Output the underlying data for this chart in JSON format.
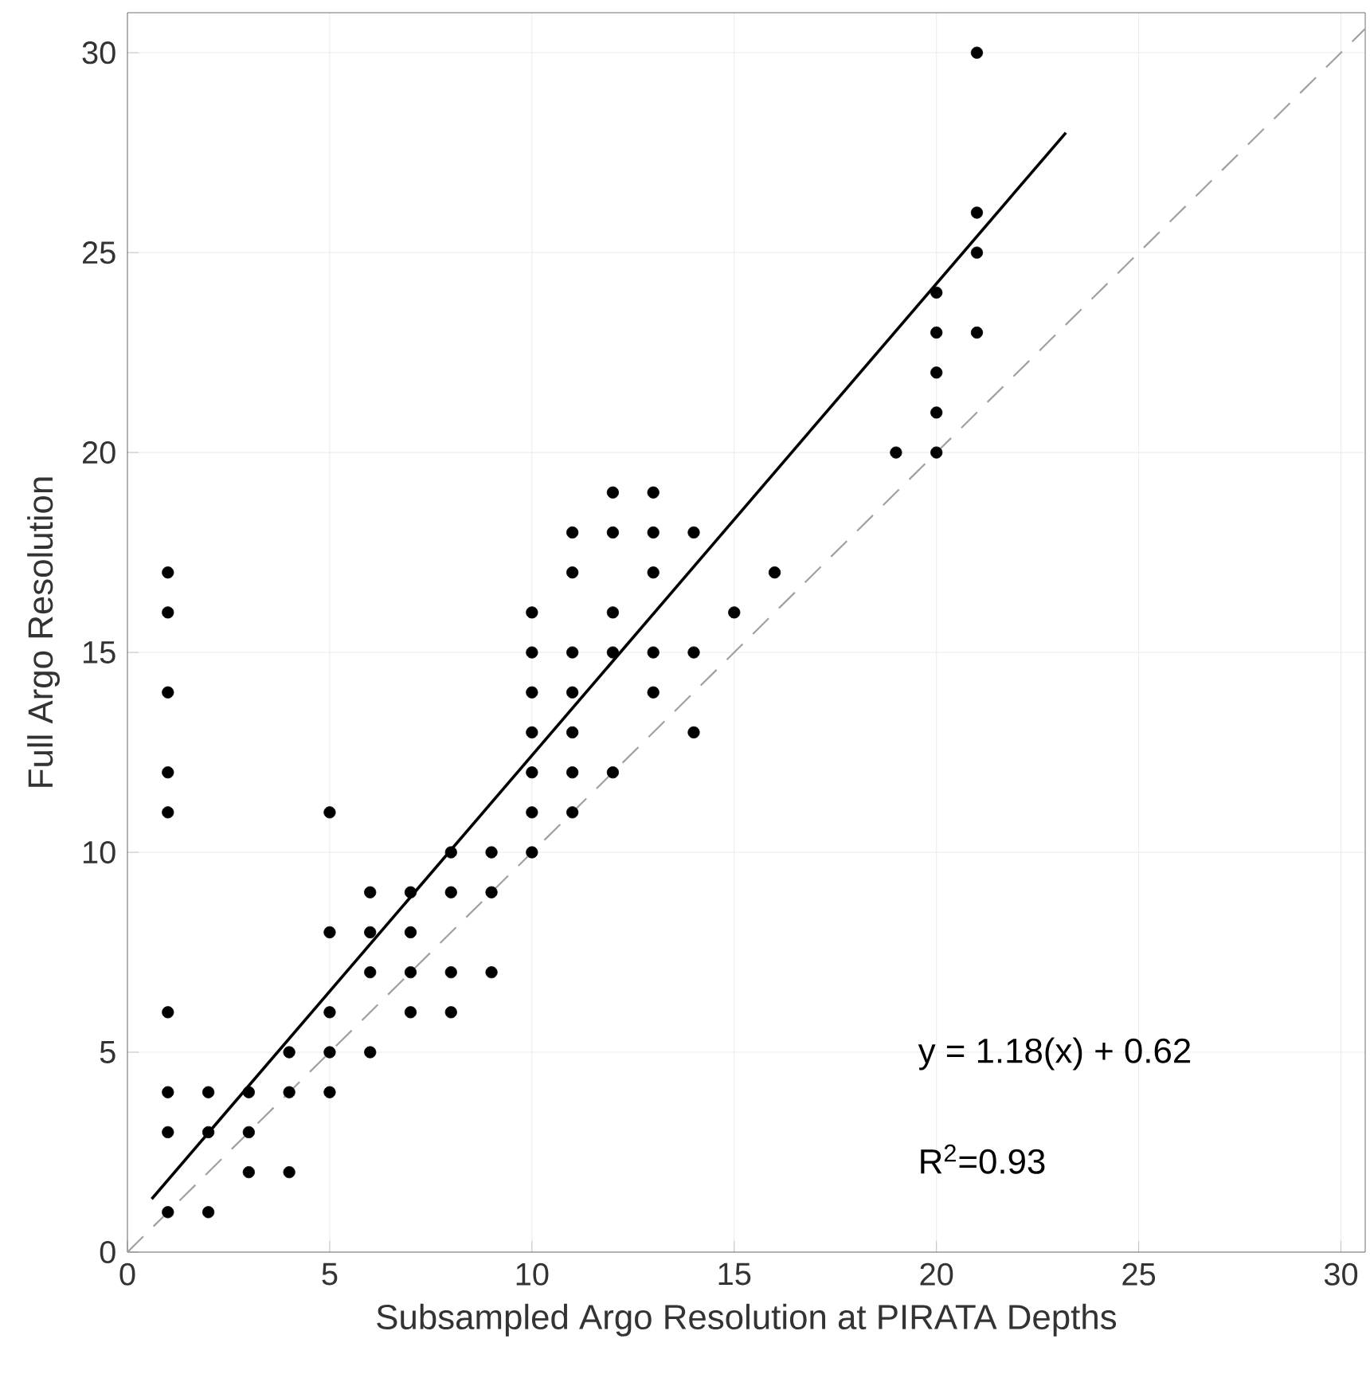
{
  "chart_data": {
    "type": "scatter",
    "xlabel": "Subsampled Argo Resolution at PIRATA Depths",
    "ylabel": "Full Argo Resolution",
    "xlim": [
      0,
      30.6
    ],
    "ylim": [
      0,
      31
    ],
    "xticks": [
      0,
      5,
      10,
      15,
      20,
      25,
      30
    ],
    "yticks": [
      0,
      5,
      10,
      15,
      20,
      25,
      30
    ],
    "grid": true,
    "series": [
      {
        "marker": "circle",
        "color": "#000000",
        "x": [
          1,
          1,
          1,
          1,
          1,
          1,
          1,
          1,
          1,
          2,
          2,
          2,
          3,
          3,
          3,
          4,
          4,
          4,
          5,
          5,
          5,
          5,
          5,
          6,
          6,
          6,
          6,
          7,
          7,
          7,
          7,
          8,
          8,
          8,
          8,
          9,
          9,
          9,
          10,
          10,
          10,
          10,
          10,
          10,
          10,
          11,
          11,
          11,
          11,
          11,
          11,
          11,
          12,
          12,
          12,
          12,
          12,
          13,
          13,
          13,
          13,
          13,
          14,
          14,
          14,
          15,
          16,
          19,
          20,
          20,
          20,
          20,
          20,
          21,
          21,
          21,
          21
        ],
        "values": [
          17,
          16,
          14,
          12,
          11,
          6,
          4,
          3,
          1,
          4,
          3,
          1,
          4,
          3,
          2,
          5,
          4,
          2,
          11,
          8,
          6,
          5,
          4,
          9,
          8,
          7,
          5,
          9,
          8,
          7,
          6,
          10,
          9,
          7,
          6,
          10,
          9,
          7,
          16,
          15,
          14,
          13,
          12,
          11,
          10,
          18,
          17,
          15,
          14,
          13,
          12,
          11,
          19,
          18,
          16,
          15,
          12,
          19,
          18,
          17,
          15,
          14,
          18,
          15,
          13,
          16,
          17,
          20,
          24,
          23,
          22,
          21,
          20,
          30,
          26,
          25,
          23
        ]
      },
      {
        "type": "line",
        "line_style": "solid",
        "marker": "none",
        "color": "#000000",
        "x": [
          0.6,
          23.2
        ],
        "values": [
          1.33,
          28.0
        ]
      },
      {
        "type": "line",
        "line_style": "dashed",
        "marker": "none",
        "color": "#a0a0a0",
        "x": [
          0,
          30.6
        ],
        "values": [
          0,
          30.6
        ]
      }
    ],
    "annotations": [
      "y = 1.18(x) + 0.62",
      "R$^{2}$=0.93"
    ]
  }
}
